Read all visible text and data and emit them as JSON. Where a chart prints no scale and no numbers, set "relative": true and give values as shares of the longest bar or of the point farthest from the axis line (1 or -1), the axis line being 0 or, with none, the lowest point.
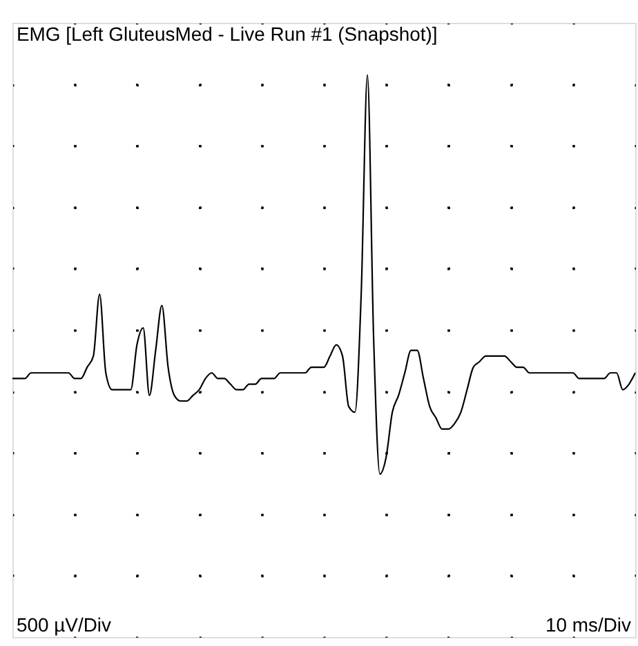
{
  "chart_data": {
    "type": "line",
    "title": "EMG [Left GluteusMed - Live Run #1 (Snapshot)]",
    "relative": true,
    "grid": true,
    "categories": [
      null,
      null,
      null,
      null,
      null,
      null,
      null,
      null,
      null,
      null,
      null,
      null,
      null,
      null,
      null,
      null,
      null,
      null,
      null,
      null,
      null,
      null,
      null,
      null,
      null,
      null,
      null,
      null,
      null,
      null,
      null,
      null,
      null,
      null,
      null,
      null,
      null,
      null,
      null,
      null,
      null,
      null,
      null,
      null,
      null,
      null,
      null,
      null,
      null,
      null,
      null,
      null,
      null,
      null,
      null,
      null,
      null,
      null,
      null,
      null,
      null,
      null,
      null,
      null,
      null,
      null,
      null,
      null,
      null,
      null,
      null,
      null,
      null,
      null,
      null,
      null,
      null,
      null,
      null,
      null,
      null,
      null,
      null,
      null,
      null,
      null,
      null,
      null,
      null,
      null,
      null,
      null,
      null,
      null,
      null,
      null,
      null,
      null,
      null,
      null,
      null
    ],
    "series": [
      {
        "color": "#000000",
        "values": [
          0.46,
          0.46,
          0.46,
          0.47,
          0.47,
          0.47,
          0.47,
          0.47,
          0.47,
          0.47,
          0.46,
          0.46,
          0.48,
          0.5,
          0.61,
          0.47,
          0.44,
          0.44,
          0.44,
          0.44,
          0.52,
          0.55,
          0.43,
          0.51,
          0.59,
          0.48,
          0.43,
          0.42,
          0.42,
          0.43,
          0.44,
          0.46,
          0.47,
          0.46,
          0.46,
          0.45,
          0.44,
          0.44,
          0.45,
          0.45,
          0.46,
          0.46,
          0.46,
          0.47,
          0.47,
          0.47,
          0.47,
          0.47,
          0.48,
          0.48,
          0.48,
          0.5,
          0.52,
          0.5,
          0.41,
          0.4,
          0.61,
          1,
          0.53,
          0.29,
          0.32,
          0.4,
          0.43,
          0.47,
          0.51,
          0.51,
          0.46,
          0.41,
          0.39,
          0.37,
          0.37,
          0.38,
          0.4,
          0.44,
          0.48,
          0.49,
          0.5,
          0.5,
          0.5,
          0.5,
          0.49,
          0.48,
          0.48,
          0.47,
          0.47,
          0.47,
          0.47,
          0.47,
          0.47,
          0.47,
          0.47,
          0.46,
          0.46,
          0.46,
          0.46,
          0.46,
          0.47,
          0.47,
          0.44,
          0.45,
          0.47
        ]
      }
    ],
    "annotations": [
      "500 µV/Div",
      "10 ms/Div"
    ]
  }
}
